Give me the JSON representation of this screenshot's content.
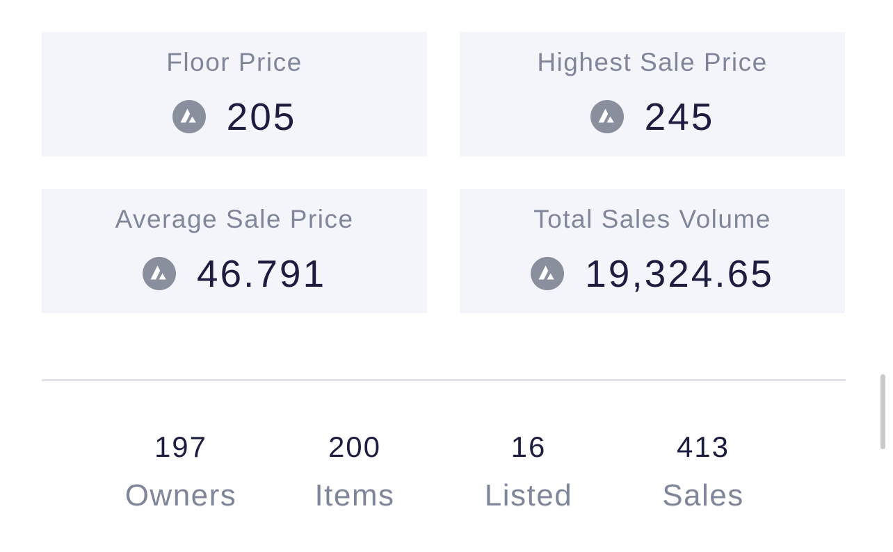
{
  "cards": {
    "floor": {
      "label": "Floor Price",
      "value": "205",
      "icon": "avalanche-icon"
    },
    "highest": {
      "label": "Highest Sale Price",
      "value": "245",
      "icon": "avalanche-icon"
    },
    "average": {
      "label": "Average Sale Price",
      "value": "46.791",
      "icon": "avalanche-icon"
    },
    "total": {
      "label": "Total Sales Volume",
      "value": "19,324.65",
      "icon": "avalanche-icon"
    }
  },
  "stats": [
    {
      "value": "197",
      "label": "Owners"
    },
    {
      "value": "200",
      "label": "Items"
    },
    {
      "value": "16",
      "label": "Listed"
    },
    {
      "value": "413",
      "label": "Sales"
    }
  ],
  "colors": {
    "card_bg": "#f4f5fb",
    "label": "#80869a",
    "value": "#1c1d3f",
    "icon": "#8a8f9e",
    "divider": "#e3e4e8"
  }
}
